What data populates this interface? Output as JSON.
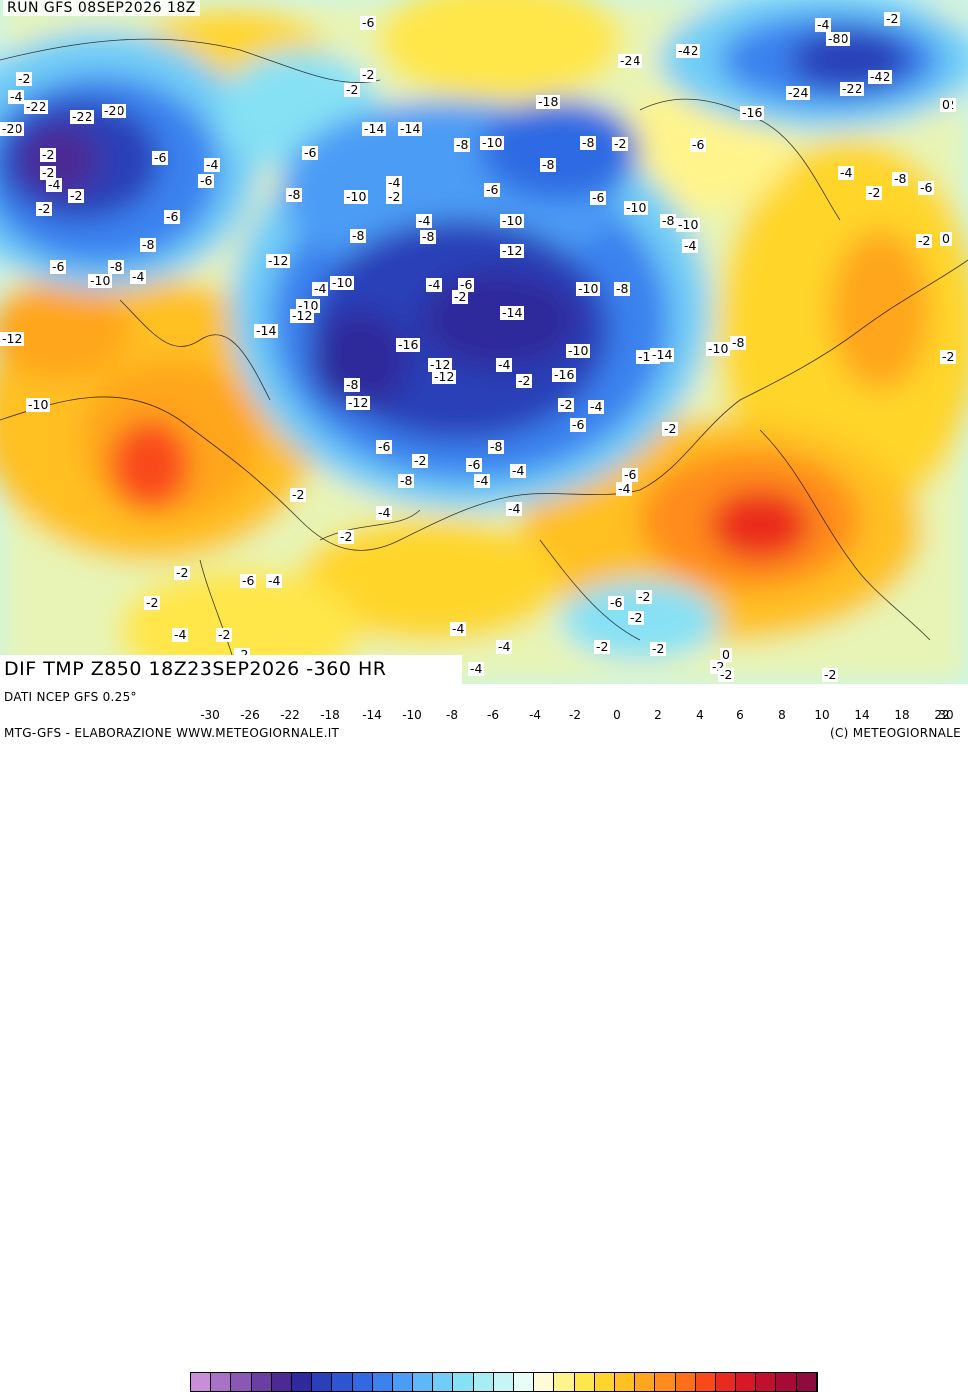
{
  "header": {
    "run": "RUN GFS 08SEP2026 18Z",
    "field": "DIF TMP Z850 18Z23SEP2026 -360 HR"
  },
  "footer": {
    "data_source": "DATI NCEP GFS 0.25°",
    "credit": "MTG-GFS - ELABORAZIONE WWW.METEOGIORNALE.IT",
    "copyright": "(C) METEOGIORNALE"
  },
  "colorbar": {
    "colors": [
      "#c98ed8",
      "#a972c6",
      "#8a57b4",
      "#6c3ea3",
      "#4b2a94",
      "#2f2a9c",
      "#2a3fb8",
      "#2d55d1",
      "#2f6ae3",
      "#3b82ef",
      "#4b9cf5",
      "#5fb6f8",
      "#71cdf7",
      "#86e1f4",
      "#a4eef4",
      "#c5f5f4",
      "#e8fcf8",
      "#fffbd6",
      "#fff48c",
      "#ffe64a",
      "#ffd52b",
      "#ffc022",
      "#ffa61f",
      "#ff8c1c",
      "#ff6f1a",
      "#f9491b",
      "#ea2a1e",
      "#d81826",
      "#bf1030",
      "#a60b38",
      "#8e0b3e"
    ],
    "ticks": [
      "-30",
      "-26",
      "-22",
      "-18",
      "-14",
      "-10",
      "-8",
      "-6",
      "-4",
      "-2",
      "0",
      "2",
      "4",
      "6",
      "8",
      "10",
      "14",
      "18",
      "22",
      "30"
    ]
  },
  "map": {
    "background_palette": {
      "cold_deep": "#2b2a9a",
      "cold": "#2f6ae3",
      "cool": "#5fb6f8",
      "near_zero": "#a4eef4",
      "warm": "#ffe64a",
      "hot": "#ff8c1c",
      "very_hot": "#ea2a1e"
    },
    "contour_labels": [
      "-6",
      "-2",
      "-6",
      "-10",
      "-12",
      "-14",
      "-4",
      "-6",
      "-4",
      "-10",
      "-12",
      "-12",
      "-12",
      "-2",
      "-6",
      "-12",
      "-10",
      "-18",
      "-16",
      "-14",
      "-14",
      "-8",
      "-10",
      "-8",
      "-2",
      "-6",
      "-8",
      "-6",
      "-2",
      "-2",
      "-4",
      "-6",
      "-4",
      "-2",
      "-2",
      "-6",
      "-8",
      "-10",
      "-4",
      "-2",
      "-4",
      "-8",
      "-6",
      "-10",
      "-8",
      "-6",
      "-10",
      "-12",
      "-8",
      "-8",
      "-10",
      "-4",
      "-6",
      "-4",
      "-2",
      "-8",
      "-6",
      "-12",
      "-6",
      "-8",
      "-10",
      "-4",
      "-2",
      "-4",
      "-10",
      "-4",
      "-6",
      "-2",
      "-10",
      "-12",
      "-14",
      "-10",
      "-8",
      "-16",
      "-10",
      "-8",
      "-12",
      "-12",
      "-12",
      "-4",
      "-2",
      "-16",
      "-14",
      "-14",
      "-10",
      "-8",
      "-14",
      "-12",
      "-10",
      "-2",
      "-4",
      "-6",
      "-2",
      "-6",
      "-2",
      "-8",
      "-6",
      "-4",
      "-8",
      "-4",
      "-6",
      "-4",
      "-2",
      "-4",
      "-4",
      "-2",
      "-2",
      "-6",
      "-4",
      "-2",
      "-4",
      "-2",
      "-2",
      "-6",
      "-2",
      "-2",
      "-4",
      "-4",
      "-2",
      "-2",
      "0",
      "-2",
      "-2",
      "-4",
      "-2",
      "-2",
      "0",
      "-2",
      "0",
      "-6",
      "-4",
      "-2",
      "-8",
      "-4",
      "-2",
      "-2",
      "-2",
      "-4",
      "-2",
      "-2",
      "-2",
      "-4",
      "-2",
      "-24",
      "-2",
      "-2"
    ]
  }
}
